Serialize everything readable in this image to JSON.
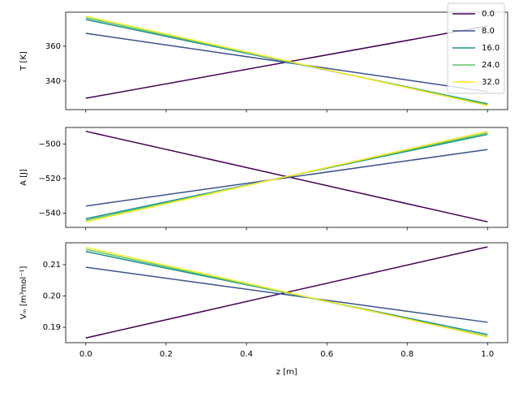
{
  "chart_data": [
    {
      "type": "line",
      "ylabel": "T [K]",
      "x": [
        0,
        1
      ],
      "xlim": [
        -0.05,
        1.05
      ],
      "xticks": [
        0,
        0.2,
        0.4,
        0.6,
        0.8,
        1
      ],
      "ylim": [
        323.7,
        379.5
      ],
      "yticks": [
        340,
        360
      ],
      "legend": "upper right",
      "series": [
        {
          "name": "0.0",
          "color": "#440154",
          "values": [
            330.2,
            371.6
          ]
        },
        {
          "name": "8.0",
          "color": "#3b528b",
          "values": [
            367.4,
            334.0
          ]
        },
        {
          "name": "16.0",
          "color": "#21918c",
          "values": [
            375.3,
            327.0
          ]
        },
        {
          "name": "24.0",
          "color": "#5ec962",
          "values": [
            376.3,
            326.5
          ]
        },
        {
          "name": "32.0",
          "color": "#fde725",
          "values": [
            377.2,
            326.0
          ]
        }
      ]
    },
    {
      "type": "line",
      "ylabel": "A [J]",
      "x": [
        0,
        1
      ],
      "xlim": [
        -0.05,
        1.05
      ],
      "xticks": [
        0,
        0.2,
        0.4,
        0.6,
        0.8,
        1
      ],
      "ylim": [
        -548.2,
        -490.5
      ],
      "yticks": [
        {
          "value": -540,
          "label": "−540"
        },
        {
          "value": -520,
          "label": "−520"
        },
        {
          "value": -500,
          "label": "−500"
        }
      ],
      "series": [
        {
          "color": "#440154",
          "values": [
            -492.7,
            -545.0
          ]
        },
        {
          "color": "#3b528b",
          "values": [
            -535.9,
            -503.2
          ]
        },
        {
          "color": "#21918c",
          "values": [
            -543.2,
            -494.5
          ]
        },
        {
          "color": "#5ec962",
          "values": [
            -544.1,
            -493.6
          ]
        },
        {
          "color": "#fde725",
          "values": [
            -545.0,
            -492.7
          ]
        }
      ]
    },
    {
      "type": "line",
      "ylabel": "Vₘ [m³mol⁻¹]",
      "xlabel": "z [m]",
      "x": [
        0,
        1
      ],
      "xlim": [
        -0.05,
        1.05
      ],
      "xticks": [
        {
          "value": 0,
          "label": "0.0"
        },
        {
          "value": 0.2,
          "label": "0.2"
        },
        {
          "value": 0.4,
          "label": "0.4"
        },
        {
          "value": 0.6,
          "label": "0.6"
        },
        {
          "value": 0.8,
          "label": "0.8"
        },
        {
          "value": 1,
          "label": "1.0"
        }
      ],
      "ylim": [
        0.1851,
        0.217
      ],
      "yticks": [
        0.19,
        {
          "value": 0.2,
          "label": "0.20"
        },
        0.21
      ],
      "series": [
        {
          "color": "#440154",
          "values": [
            0.1866,
            0.2157
          ]
        },
        {
          "color": "#3b528b",
          "values": [
            0.2092,
            0.1916
          ]
        },
        {
          "color": "#21918c",
          "values": [
            0.2142,
            0.1877
          ]
        },
        {
          "color": "#5ec962",
          "values": [
            0.2149,
            0.1871
          ]
        },
        {
          "color": "#fde725",
          "values": [
            0.2155,
            0.1869
          ]
        }
      ]
    }
  ]
}
